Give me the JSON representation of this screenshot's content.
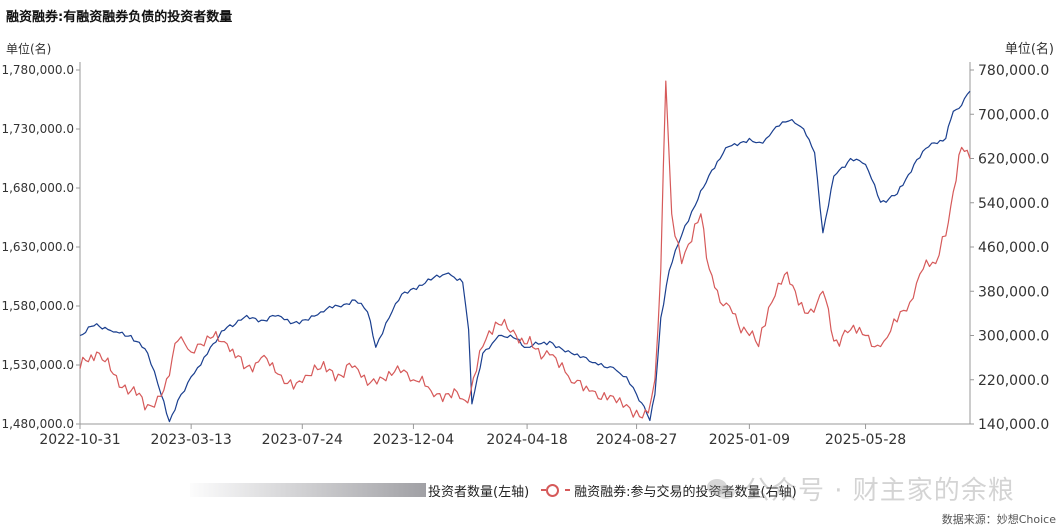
{
  "chart_data": {
    "type": "line",
    "title": "融资融券:有融资融券负债的投资者数量",
    "unit_left": "单位(名)",
    "unit_right": "单位(名)",
    "x_ticks": [
      "2022-10-31",
      "2023-03-13",
      "2023-07-24",
      "2023-12-04",
      "2024-04-18",
      "2024-08-27",
      "2025-01-09",
      "2025-05-28"
    ],
    "x_range": [
      "2022-10-31",
      "2025-09-30"
    ],
    "y_left": {
      "range": [
        1480000,
        1780000
      ],
      "ticks": [
        "1,480,000.0",
        "1,530,000.0",
        "1,580,000.0",
        "1,630,000.0",
        "1,680,000.0",
        "1,730,000.0",
        "1,780,000.0"
      ]
    },
    "y_right": {
      "range": [
        140000,
        780000
      ],
      "ticks": [
        "140,000.0",
        "220,000.0",
        "300,000.0",
        "380,000.0",
        "460,000.0",
        "540,000.0",
        "620,000.0",
        "700,000.0",
        "780,000.0"
      ]
    },
    "grid": false,
    "legend_position": "bottom",
    "series": [
      {
        "name": "投资者数量(左轴)",
        "axis": "left",
        "color": "#1a3f8f",
        "points": [
          [
            "2022-10-31",
            1555000
          ],
          [
            "2022-11-20",
            1565000
          ],
          [
            "2022-12-10",
            1558000
          ],
          [
            "2022-12-31",
            1555000
          ],
          [
            "2023-01-20",
            1540000
          ],
          [
            "2023-02-05",
            1505000
          ],
          [
            "2023-02-15",
            1482000
          ],
          [
            "2023-02-25",
            1500000
          ],
          [
            "2023-03-13",
            1520000
          ],
          [
            "2023-04-05",
            1545000
          ],
          [
            "2023-04-25",
            1562000
          ],
          [
            "2023-05-15",
            1570000
          ],
          [
            "2023-06-05",
            1568000
          ],
          [
            "2023-06-25",
            1572000
          ],
          [
            "2023-07-10",
            1565000
          ],
          [
            "2023-07-24",
            1568000
          ],
          [
            "2023-08-15",
            1575000
          ],
          [
            "2023-09-05",
            1580000
          ],
          [
            "2023-09-25",
            1585000
          ],
          [
            "2023-10-10",
            1575000
          ],
          [
            "2023-10-20",
            1545000
          ],
          [
            "2023-11-05",
            1570000
          ],
          [
            "2023-11-20",
            1590000
          ],
          [
            "2023-12-04",
            1595000
          ],
          [
            "2023-12-25",
            1602000
          ],
          [
            "2024-01-15",
            1608000
          ],
          [
            "2024-02-01",
            1600000
          ],
          [
            "2024-02-08",
            1560000
          ],
          [
            "2024-02-12",
            1497000
          ],
          [
            "2024-02-25",
            1540000
          ],
          [
            "2024-03-15",
            1555000
          ],
          [
            "2024-04-05",
            1552000
          ],
          [
            "2024-04-18",
            1545000
          ],
          [
            "2024-05-15",
            1550000
          ],
          [
            "2024-06-10",
            1540000
          ],
          [
            "2024-07-05",
            1532000
          ],
          [
            "2024-07-30",
            1528000
          ],
          [
            "2024-08-15",
            1520000
          ],
          [
            "2024-08-27",
            1505000
          ],
          [
            "2024-09-05",
            1495000
          ],
          [
            "2024-09-12",
            1483000
          ],
          [
            "2024-09-18",
            1505000
          ],
          [
            "2024-09-25",
            1570000
          ],
          [
            "2024-10-05",
            1610000
          ],
          [
            "2024-10-20",
            1640000
          ],
          [
            "2024-11-05",
            1665000
          ],
          [
            "2024-11-25",
            1695000
          ],
          [
            "2024-12-15",
            1715000
          ],
          [
            "2025-01-09",
            1722000
          ],
          [
            "2025-01-25",
            1718000
          ],
          [
            "2025-02-10",
            1732000
          ],
          [
            "2025-03-01",
            1738000
          ],
          [
            "2025-03-15",
            1730000
          ],
          [
            "2025-03-28",
            1710000
          ],
          [
            "2025-04-07",
            1642000
          ],
          [
            "2025-04-20",
            1690000
          ],
          [
            "2025-05-10",
            1705000
          ],
          [
            "2025-05-28",
            1700000
          ],
          [
            "2025-06-15",
            1668000
          ],
          [
            "2025-07-05",
            1675000
          ],
          [
            "2025-07-25",
            1700000
          ],
          [
            "2025-08-15",
            1718000
          ],
          [
            "2025-09-01",
            1722000
          ],
          [
            "2025-09-10",
            1745000
          ],
          [
            "2025-09-20",
            1750000
          ],
          [
            "2025-09-30",
            1762000
          ]
        ]
      },
      {
        "name": "融资融券:参与交易的投资者数量(右轴)",
        "axis": "right",
        "color": "#d65a5a",
        "points": [
          [
            "2022-10-31",
            240000
          ],
          [
            "2022-11-20",
            270000
          ],
          [
            "2022-12-10",
            230000
          ],
          [
            "2022-12-31",
            200000
          ],
          [
            "2023-01-20",
            175000
          ],
          [
            "2023-02-05",
            190000
          ],
          [
            "2023-02-25",
            290000
          ],
          [
            "2023-03-13",
            270000
          ],
          [
            "2023-04-05",
            295000
          ],
          [
            "2023-04-25",
            285000
          ],
          [
            "2023-05-15",
            240000
          ],
          [
            "2023-06-05",
            260000
          ],
          [
            "2023-06-25",
            230000
          ],
          [
            "2023-07-10",
            220000
          ],
          [
            "2023-07-24",
            215000
          ],
          [
            "2023-08-15",
            240000
          ],
          [
            "2023-09-05",
            230000
          ],
          [
            "2023-09-25",
            245000
          ],
          [
            "2023-10-10",
            210000
          ],
          [
            "2023-10-25",
            225000
          ],
          [
            "2023-11-15",
            245000
          ],
          [
            "2023-12-04",
            220000
          ],
          [
            "2023-12-25",
            200000
          ],
          [
            "2024-01-15",
            195000
          ],
          [
            "2024-02-01",
            185000
          ],
          [
            "2024-02-10",
            195000
          ],
          [
            "2024-02-25",
            280000
          ],
          [
            "2024-03-15",
            320000
          ],
          [
            "2024-04-05",
            300000
          ],
          [
            "2024-04-18",
            285000
          ],
          [
            "2024-05-15",
            265000
          ],
          [
            "2024-06-10",
            215000
          ],
          [
            "2024-07-05",
            200000
          ],
          [
            "2024-07-30",
            190000
          ],
          [
            "2024-08-15",
            175000
          ],
          [
            "2024-08-27",
            165000
          ],
          [
            "2024-09-10",
            160000
          ],
          [
            "2024-09-18",
            220000
          ],
          [
            "2024-09-25",
            420000
          ],
          [
            "2024-10-01",
            760000
          ],
          [
            "2024-10-08",
            520000
          ],
          [
            "2024-10-20",
            430000
          ],
          [
            "2024-11-01",
            470000
          ],
          [
            "2024-11-12",
            520000
          ],
          [
            "2024-11-22",
            420000
          ],
          [
            "2024-12-05",
            360000
          ],
          [
            "2024-12-20",
            340000
          ],
          [
            "2025-01-09",
            300000
          ],
          [
            "2025-01-20",
            280000
          ],
          [
            "2025-02-05",
            360000
          ],
          [
            "2025-02-20",
            410000
          ],
          [
            "2025-03-05",
            380000
          ],
          [
            "2025-03-20",
            340000
          ],
          [
            "2025-04-07",
            380000
          ],
          [
            "2025-04-20",
            290000
          ],
          [
            "2025-05-10",
            310000
          ],
          [
            "2025-05-28",
            300000
          ],
          [
            "2025-06-15",
            280000
          ],
          [
            "2025-07-01",
            330000
          ],
          [
            "2025-07-20",
            360000
          ],
          [
            "2025-08-05",
            420000
          ],
          [
            "2025-08-20",
            430000
          ],
          [
            "2025-09-01",
            480000
          ],
          [
            "2025-09-10",
            560000
          ],
          [
            "2025-09-20",
            640000
          ],
          [
            "2025-09-30",
            620000
          ]
        ]
      }
    ]
  },
  "legend": {
    "series_left": "投资者数量(左轴)",
    "series_right": "融资融券:参与交易的投资者数量(右轴)"
  },
  "watermark": {
    "text": "公众号 · 财主家的余粮",
    "icon": "wechat-icon"
  },
  "source": "数据来源：妙想Choice"
}
